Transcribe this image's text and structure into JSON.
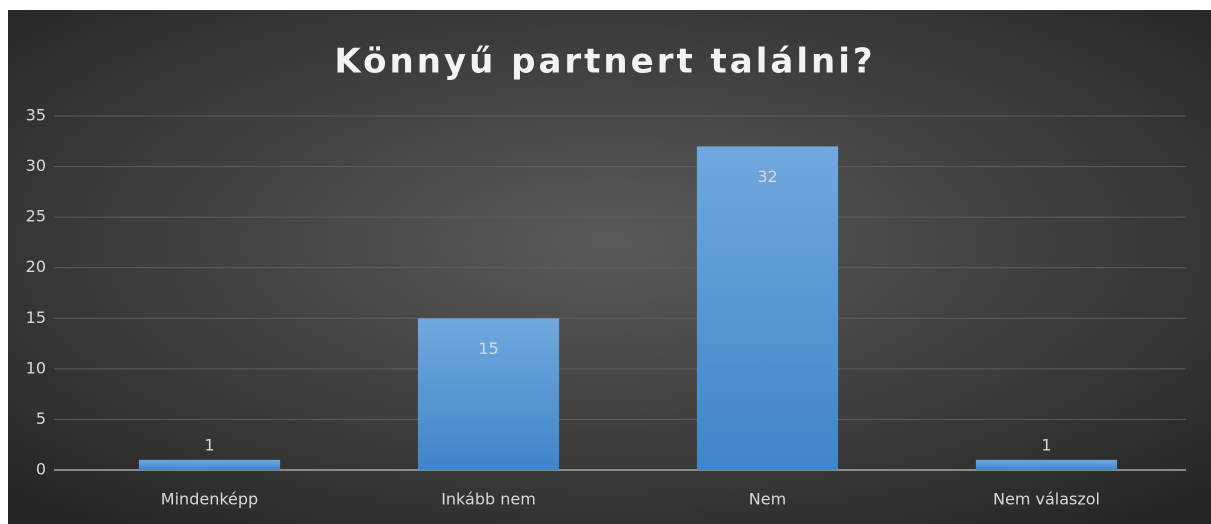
{
  "chart_data": {
    "type": "bar",
    "title": "Könnyű partnert találni?",
    "categories": [
      "Mindenképp",
      "Inkább nem",
      "Nem",
      "Nem válaszol"
    ],
    "values": [
      1,
      15,
      32,
      1
    ],
    "color": "#5b9bd5",
    "ylim": [
      0,
      35
    ],
    "yticks": [
      0,
      5,
      10,
      15,
      20,
      25,
      30,
      35
    ],
    "grid": true
  }
}
